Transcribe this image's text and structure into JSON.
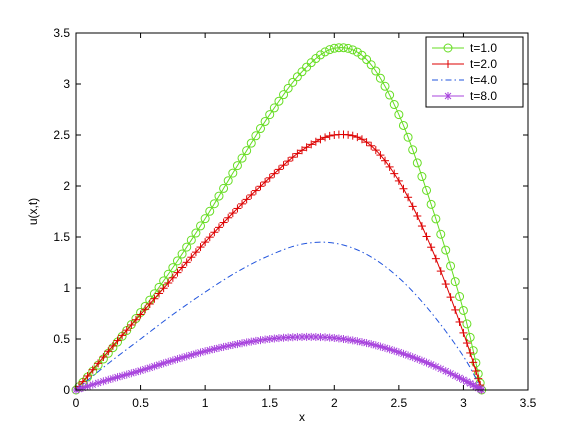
{
  "chart_data": {
    "type": "line",
    "title": "",
    "xlabel": "x",
    "ylabel": "u(x,t)",
    "xlim": [
      0,
      3.5
    ],
    "ylim": [
      0,
      3.5
    ],
    "xticks": [
      "0",
      "0.5",
      "1",
      "1.5",
      "2",
      "2.5",
      "3",
      "3.5"
    ],
    "yticks": [
      "0",
      "0.5",
      "1",
      "1.5",
      "2",
      "2.5",
      "3",
      "3.5"
    ],
    "grid": false,
    "legend_position": "top-right",
    "x": [
      0.0,
      0.25,
      0.5,
      0.75,
      1.0,
      1.25,
      1.5,
      1.75,
      2.0,
      2.25,
      2.5,
      2.75,
      3.0,
      3.1416
    ],
    "series": [
      {
        "name": "t=1.0",
        "color": "#66dd22",
        "line": "solid",
        "marker": "circle",
        "values": [
          0.0,
          0.36,
          0.76,
          1.2,
          1.68,
          2.2,
          2.7,
          3.12,
          3.35,
          3.24,
          2.7,
          1.82,
          0.78,
          0.0
        ]
      },
      {
        "name": "t=2.0",
        "color": "#dd0000",
        "line": "solid",
        "marker": "plus",
        "values": [
          0.0,
          0.38,
          0.74,
          1.1,
          1.45,
          1.78,
          2.08,
          2.35,
          2.5,
          2.43,
          2.05,
          1.4,
          0.56,
          0.0
        ]
      },
      {
        "name": "t=4.0",
        "color": "#2255dd",
        "line": "dashdot",
        "marker": "none",
        "values": [
          0.0,
          0.26,
          0.5,
          0.74,
          0.96,
          1.16,
          1.32,
          1.43,
          1.44,
          1.33,
          1.1,
          0.76,
          0.33,
          0.0
        ]
      },
      {
        "name": "t=8.0",
        "color": "#a844dd",
        "line": "solid",
        "marker": "asterisk",
        "values": [
          0.0,
          0.1,
          0.19,
          0.29,
          0.38,
          0.45,
          0.5,
          0.52,
          0.51,
          0.46,
          0.37,
          0.25,
          0.1,
          0.0
        ]
      }
    ]
  }
}
